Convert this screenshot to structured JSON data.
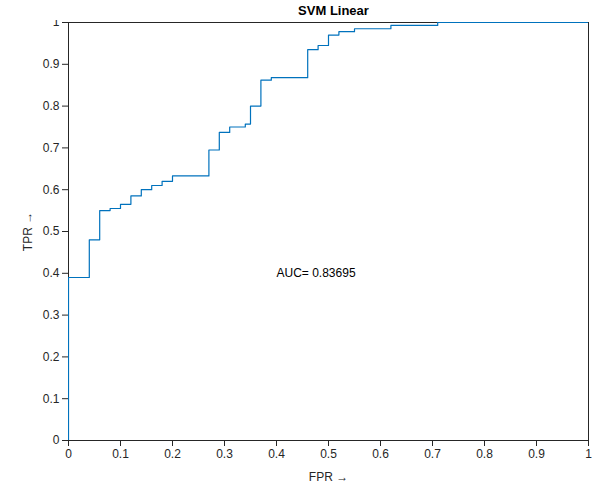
{
  "chart_data": {
    "type": "line",
    "title": "SVM Linear",
    "x_label": "FPR",
    "y_label": "TPR",
    "x": [
      0,
      0,
      0.04,
      0.04,
      0.06,
      0.06,
      0.08,
      0.08,
      0.1,
      0.1,
      0.12,
      0.12,
      0.14,
      0.14,
      0.16,
      0.16,
      0.18,
      0.18,
      0.2,
      0.2,
      0.27,
      0.27,
      0.29,
      0.29,
      0.31,
      0.31,
      0.34,
      0.34,
      0.35,
      0.35,
      0.37,
      0.37,
      0.39,
      0.39,
      0.46,
      0.46,
      0.48,
      0.48,
      0.5,
      0.5,
      0.52,
      0.52,
      0.55,
      0.55,
      0.62,
      0.62,
      0.71,
      0.71,
      1
    ],
    "values": [
      0,
      0.39,
      0.39,
      0.48,
      0.48,
      0.55,
      0.55,
      0.555,
      0.555,
      0.565,
      0.565,
      0.585,
      0.585,
      0.6,
      0.6,
      0.61,
      0.61,
      0.62,
      0.62,
      0.633,
      0.633,
      0.695,
      0.695,
      0.737,
      0.737,
      0.75,
      0.75,
      0.757,
      0.757,
      0.8,
      0.8,
      0.862,
      0.862,
      0.868,
      0.868,
      0.935,
      0.935,
      0.945,
      0.945,
      0.97,
      0.97,
      0.978,
      0.978,
      0.985,
      0.985,
      0.993,
      0.993,
      1,
      1
    ],
    "color": "#0072bd",
    "line_style": "solid",
    "grid": false,
    "xlim": [
      0,
      1
    ],
    "ylim": [
      0,
      1
    ],
    "xticks": [
      0,
      0.1,
      0.2,
      0.3,
      0.4,
      0.5,
      0.6,
      0.7,
      0.8,
      0.9,
      1
    ],
    "yticks": [
      0,
      0.1,
      0.2,
      0.3,
      0.4,
      0.5,
      0.6,
      0.7,
      0.8,
      0.9,
      1
    ],
    "annotations": [
      {
        "text": "AUC= 0.83695",
        "x": 0.4,
        "y": 0.4
      }
    ]
  }
}
